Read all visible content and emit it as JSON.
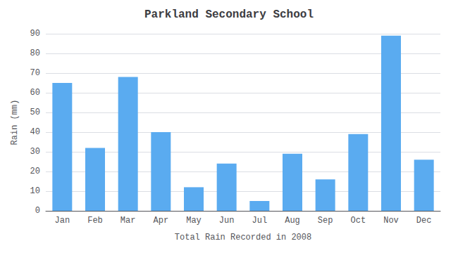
{
  "chart_data": {
    "type": "bar",
    "title": "Parkland Secondary School",
    "xlabel": "Total Rain Recorded in 2008",
    "ylabel": "Rain (mm)",
    "categories": [
      "Jan",
      "Feb",
      "Mar",
      "Apr",
      "May",
      "Jun",
      "Jul",
      "Aug",
      "Sep",
      "Oct",
      "Nov",
      "Dec"
    ],
    "values": [
      65,
      32,
      68,
      40,
      12,
      24,
      5,
      29,
      16,
      39,
      89,
      26
    ],
    "color": "#5aabf0",
    "ylim": [
      0,
      90
    ],
    "yticks": [
      0,
      10,
      20,
      30,
      40,
      50,
      60,
      70,
      80,
      90
    ],
    "grid": true
  }
}
